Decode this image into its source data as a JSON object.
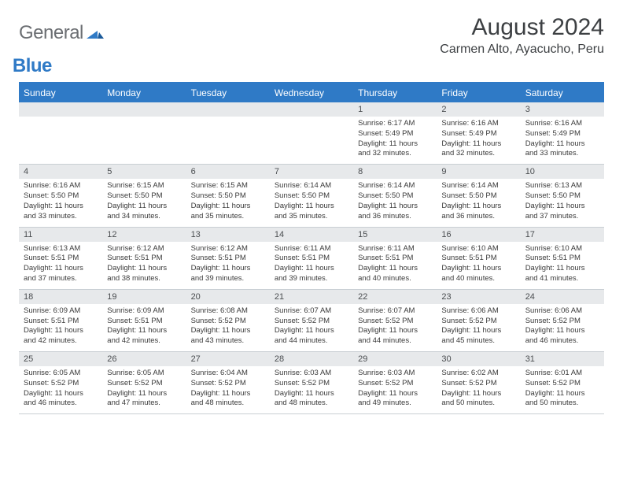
{
  "brand": {
    "general": "General",
    "blue": "Blue"
  },
  "title": "August 2024",
  "location": "Carmen Alto, Ayacucho, Peru",
  "colors": {
    "header_bg": "#2f7ac6",
    "header_text": "#ffffff",
    "daynum_bg": "#e7e9eb",
    "border": "#c9cfd4",
    "text": "#3a3a3a",
    "logo_gray": "#6b6e72",
    "logo_blue": "#2f7ac6",
    "page_bg": "#ffffff"
  },
  "weekdays": [
    "Sunday",
    "Monday",
    "Tuesday",
    "Wednesday",
    "Thursday",
    "Friday",
    "Saturday"
  ],
  "layout": {
    "first_weekday_index": 4,
    "days_in_month": 31
  },
  "days": {
    "1": {
      "sunrise": "6:17 AM",
      "sunset": "5:49 PM",
      "daylight": "11 hours and 32 minutes."
    },
    "2": {
      "sunrise": "6:16 AM",
      "sunset": "5:49 PM",
      "daylight": "11 hours and 32 minutes."
    },
    "3": {
      "sunrise": "6:16 AM",
      "sunset": "5:49 PM",
      "daylight": "11 hours and 33 minutes."
    },
    "4": {
      "sunrise": "6:16 AM",
      "sunset": "5:50 PM",
      "daylight": "11 hours and 33 minutes."
    },
    "5": {
      "sunrise": "6:15 AM",
      "sunset": "5:50 PM",
      "daylight": "11 hours and 34 minutes."
    },
    "6": {
      "sunrise": "6:15 AM",
      "sunset": "5:50 PM",
      "daylight": "11 hours and 35 minutes."
    },
    "7": {
      "sunrise": "6:14 AM",
      "sunset": "5:50 PM",
      "daylight": "11 hours and 35 minutes."
    },
    "8": {
      "sunrise": "6:14 AM",
      "sunset": "5:50 PM",
      "daylight": "11 hours and 36 minutes."
    },
    "9": {
      "sunrise": "6:14 AM",
      "sunset": "5:50 PM",
      "daylight": "11 hours and 36 minutes."
    },
    "10": {
      "sunrise": "6:13 AM",
      "sunset": "5:50 PM",
      "daylight": "11 hours and 37 minutes."
    },
    "11": {
      "sunrise": "6:13 AM",
      "sunset": "5:51 PM",
      "daylight": "11 hours and 37 minutes."
    },
    "12": {
      "sunrise": "6:12 AM",
      "sunset": "5:51 PM",
      "daylight": "11 hours and 38 minutes."
    },
    "13": {
      "sunrise": "6:12 AM",
      "sunset": "5:51 PM",
      "daylight": "11 hours and 39 minutes."
    },
    "14": {
      "sunrise": "6:11 AM",
      "sunset": "5:51 PM",
      "daylight": "11 hours and 39 minutes."
    },
    "15": {
      "sunrise": "6:11 AM",
      "sunset": "5:51 PM",
      "daylight": "11 hours and 40 minutes."
    },
    "16": {
      "sunrise": "6:10 AM",
      "sunset": "5:51 PM",
      "daylight": "11 hours and 40 minutes."
    },
    "17": {
      "sunrise": "6:10 AM",
      "sunset": "5:51 PM",
      "daylight": "11 hours and 41 minutes."
    },
    "18": {
      "sunrise": "6:09 AM",
      "sunset": "5:51 PM",
      "daylight": "11 hours and 42 minutes."
    },
    "19": {
      "sunrise": "6:09 AM",
      "sunset": "5:51 PM",
      "daylight": "11 hours and 42 minutes."
    },
    "20": {
      "sunrise": "6:08 AM",
      "sunset": "5:52 PM",
      "daylight": "11 hours and 43 minutes."
    },
    "21": {
      "sunrise": "6:07 AM",
      "sunset": "5:52 PM",
      "daylight": "11 hours and 44 minutes."
    },
    "22": {
      "sunrise": "6:07 AM",
      "sunset": "5:52 PM",
      "daylight": "11 hours and 44 minutes."
    },
    "23": {
      "sunrise": "6:06 AM",
      "sunset": "5:52 PM",
      "daylight": "11 hours and 45 minutes."
    },
    "24": {
      "sunrise": "6:06 AM",
      "sunset": "5:52 PM",
      "daylight": "11 hours and 46 minutes."
    },
    "25": {
      "sunrise": "6:05 AM",
      "sunset": "5:52 PM",
      "daylight": "11 hours and 46 minutes."
    },
    "26": {
      "sunrise": "6:05 AM",
      "sunset": "5:52 PM",
      "daylight": "11 hours and 47 minutes."
    },
    "27": {
      "sunrise": "6:04 AM",
      "sunset": "5:52 PM",
      "daylight": "11 hours and 48 minutes."
    },
    "28": {
      "sunrise": "6:03 AM",
      "sunset": "5:52 PM",
      "daylight": "11 hours and 48 minutes."
    },
    "29": {
      "sunrise": "6:03 AM",
      "sunset": "5:52 PM",
      "daylight": "11 hours and 49 minutes."
    },
    "30": {
      "sunrise": "6:02 AM",
      "sunset": "5:52 PM",
      "daylight": "11 hours and 50 minutes."
    },
    "31": {
      "sunrise": "6:01 AM",
      "sunset": "5:52 PM",
      "daylight": "11 hours and 50 minutes."
    }
  },
  "labels": {
    "sunrise": "Sunrise:",
    "sunset": "Sunset:",
    "daylight": "Daylight:"
  }
}
